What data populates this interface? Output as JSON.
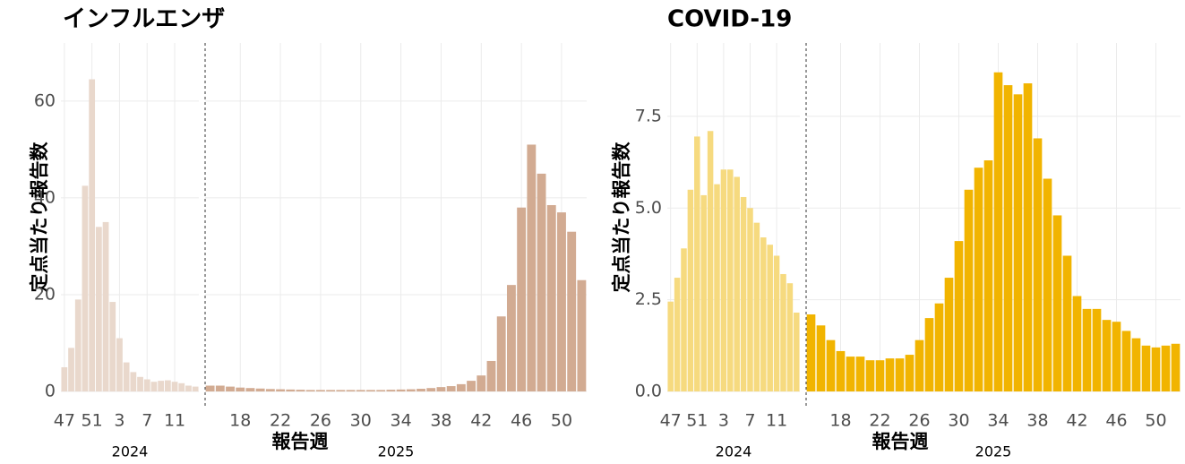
{
  "chart_data": [
    {
      "type": "bar",
      "title": "インフルエンザ",
      "ylabel": "定点当たり報告数",
      "xlabel": "報告週",
      "ylim": [
        0,
        72
      ],
      "yticks": [
        0,
        20,
        40,
        60
      ],
      "grid": true,
      "panels": [
        {
          "label": "2024",
          "color": "#e9d8cc",
          "categories": [
            "47",
            null,
            null,
            null,
            "51",
            null,
            null,
            null,
            "3",
            null,
            null,
            null,
            "7",
            null,
            null,
            null,
            "11",
            null,
            null,
            null
          ],
          "values": [
            5,
            9,
            19,
            42.5,
            64.5,
            34,
            35,
            18.5,
            11,
            6,
            4,
            3,
            2.5,
            2,
            2.2,
            2.3,
            2,
            1.7,
            1.2,
            1.0
          ]
        },
        {
          "label": "2025",
          "color": "#d2ab92",
          "categories": [
            null,
            null,
            null,
            "18",
            null,
            null,
            null,
            "22",
            null,
            null,
            null,
            "26",
            null,
            null,
            null,
            "30",
            null,
            null,
            null,
            "34",
            null,
            null,
            null,
            "38",
            null,
            null,
            null,
            "42",
            null,
            null,
            null,
            "46",
            null,
            null,
            null,
            "50",
            null,
            null
          ],
          "values": [
            1.2,
            1.2,
            1.0,
            0.8,
            0.7,
            0.6,
            0.5,
            0.45,
            0.4,
            0.35,
            0.3,
            0.3,
            0.3,
            0.3,
            0.3,
            0.3,
            0.3,
            0.3,
            0.35,
            0.4,
            0.45,
            0.55,
            0.7,
            0.9,
            1.1,
            1.5,
            2.2,
            3.3,
            6.3,
            15.5,
            22,
            38,
            51,
            45,
            38.5,
            37,
            33,
            23
          ]
        }
      ]
    },
    {
      "type": "bar",
      "title": "COVID-19",
      "ylabel": "定点当たり報告数",
      "xlabel": "報告週",
      "ylim": [
        0,
        9.5
      ],
      "yticks": [
        {
          "value": 0,
          "label": "0.0"
        },
        2.5,
        {
          "value": 5,
          "label": "5.0"
        },
        7.5
      ],
      "grid": true,
      "panels": [
        {
          "label": "2024",
          "color": "#f6da7f",
          "categories": [
            "47",
            null,
            null,
            null,
            "51",
            null,
            null,
            null,
            "3",
            null,
            null,
            null,
            "7",
            null,
            null,
            null,
            "11",
            null,
            null,
            null
          ],
          "values": [
            2.45,
            3.1,
            3.9,
            5.5,
            6.95,
            5.35,
            7.1,
            5.65,
            6.05,
            6.05,
            5.85,
            5.3,
            5.0,
            4.6,
            4.2,
            4.0,
            3.7,
            3.2,
            2.95,
            2.15
          ]
        },
        {
          "label": "2025",
          "color": "#f1b400",
          "categories": [
            null,
            null,
            null,
            "18",
            null,
            null,
            null,
            "22",
            null,
            null,
            null,
            "26",
            null,
            null,
            null,
            "30",
            null,
            null,
            null,
            "34",
            null,
            null,
            null,
            "38",
            null,
            null,
            null,
            "42",
            null,
            null,
            null,
            "46",
            null,
            null,
            null,
            "50",
            null,
            null
          ],
          "values": [
            2.1,
            1.8,
            1.4,
            1.1,
            0.95,
            0.95,
            0.85,
            0.85,
            0.9,
            0.9,
            1.0,
            1.4,
            2.0,
            2.4,
            3.1,
            4.1,
            5.5,
            6.1,
            6.3,
            8.7,
            8.35,
            8.1,
            8.4,
            6.9,
            5.8,
            4.8,
            3.7,
            2.6,
            2.25,
            2.25,
            1.95,
            1.9,
            1.65,
            1.45,
            1.25,
            1.2,
            1.25,
            1.3
          ]
        }
      ]
    }
  ]
}
